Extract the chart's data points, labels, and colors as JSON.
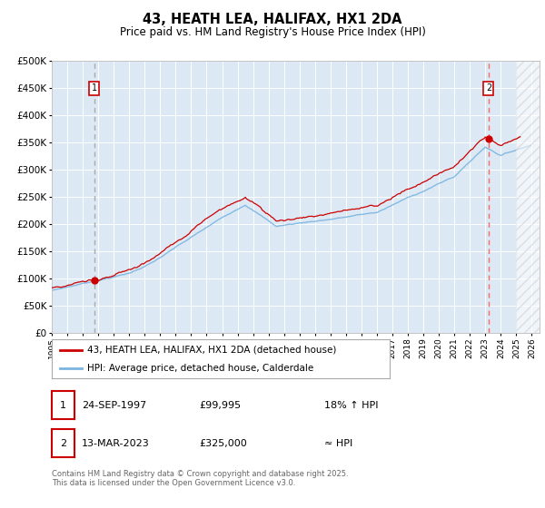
{
  "title": "43, HEATH LEA, HALIFAX, HX1 2DA",
  "subtitle": "Price paid vs. HM Land Registry's House Price Index (HPI)",
  "legend_line1": "43, HEATH LEA, HALIFAX, HX1 2DA (detached house)",
  "legend_line2": "HPI: Average price, detached house, Calderdale",
  "annotation1_date": "24-SEP-1997",
  "annotation1_price": "£99,995",
  "annotation1_hpi": "18% ↑ HPI",
  "annotation2_date": "13-MAR-2023",
  "annotation2_price": "£325,000",
  "annotation2_hpi": "≈ HPI",
  "footer": "Contains HM Land Registry data © Crown copyright and database right 2025.\nThis data is licensed under the Open Government Licence v3.0.",
  "plot_bg_color": "#dce9f5",
  "hpi_color": "#7ab4e0",
  "price_color": "#cc0000",
  "dashed1_color": "#aaaaaa",
  "dashed2_color": "#ff6666",
  "marker_color": "#cc0000",
  "ylim": [
    0,
    500000
  ],
  "yticks": [
    0,
    50000,
    100000,
    150000,
    200000,
    250000,
    300000,
    350000,
    400000,
    450000,
    500000
  ],
  "xstart": 1995.0,
  "xend": 2026.5,
  "t1": 1997.73,
  "t2": 2023.21,
  "price_at_t1": 99995,
  "price_at_t2": 325000
}
